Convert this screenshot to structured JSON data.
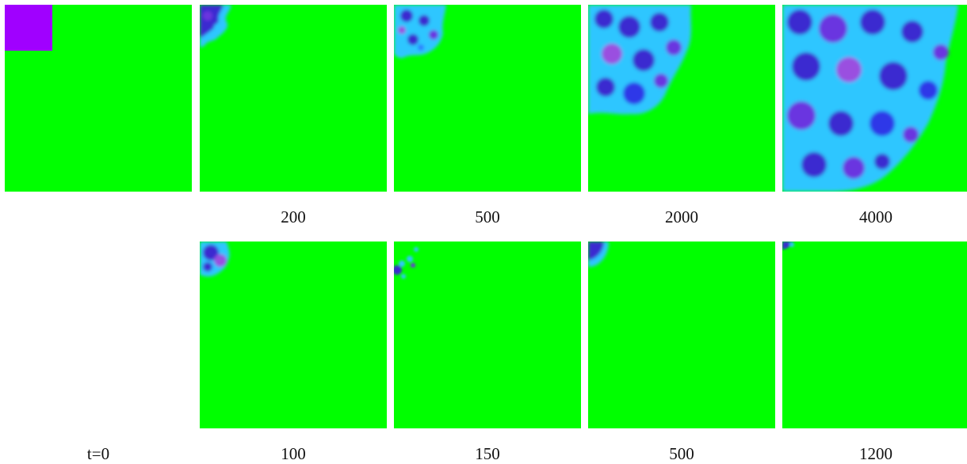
{
  "colors": {
    "background": "#00ff00",
    "seed": "#a000ff",
    "dark": "#3a2bd0",
    "light": "#2ec6ff"
  },
  "top_row": {
    "captions": [
      "200",
      "500",
      "2000",
      "4000"
    ]
  },
  "bottom_row": {
    "captions": [
      "t=0",
      "100",
      "150",
      "500",
      "1200"
    ]
  }
}
